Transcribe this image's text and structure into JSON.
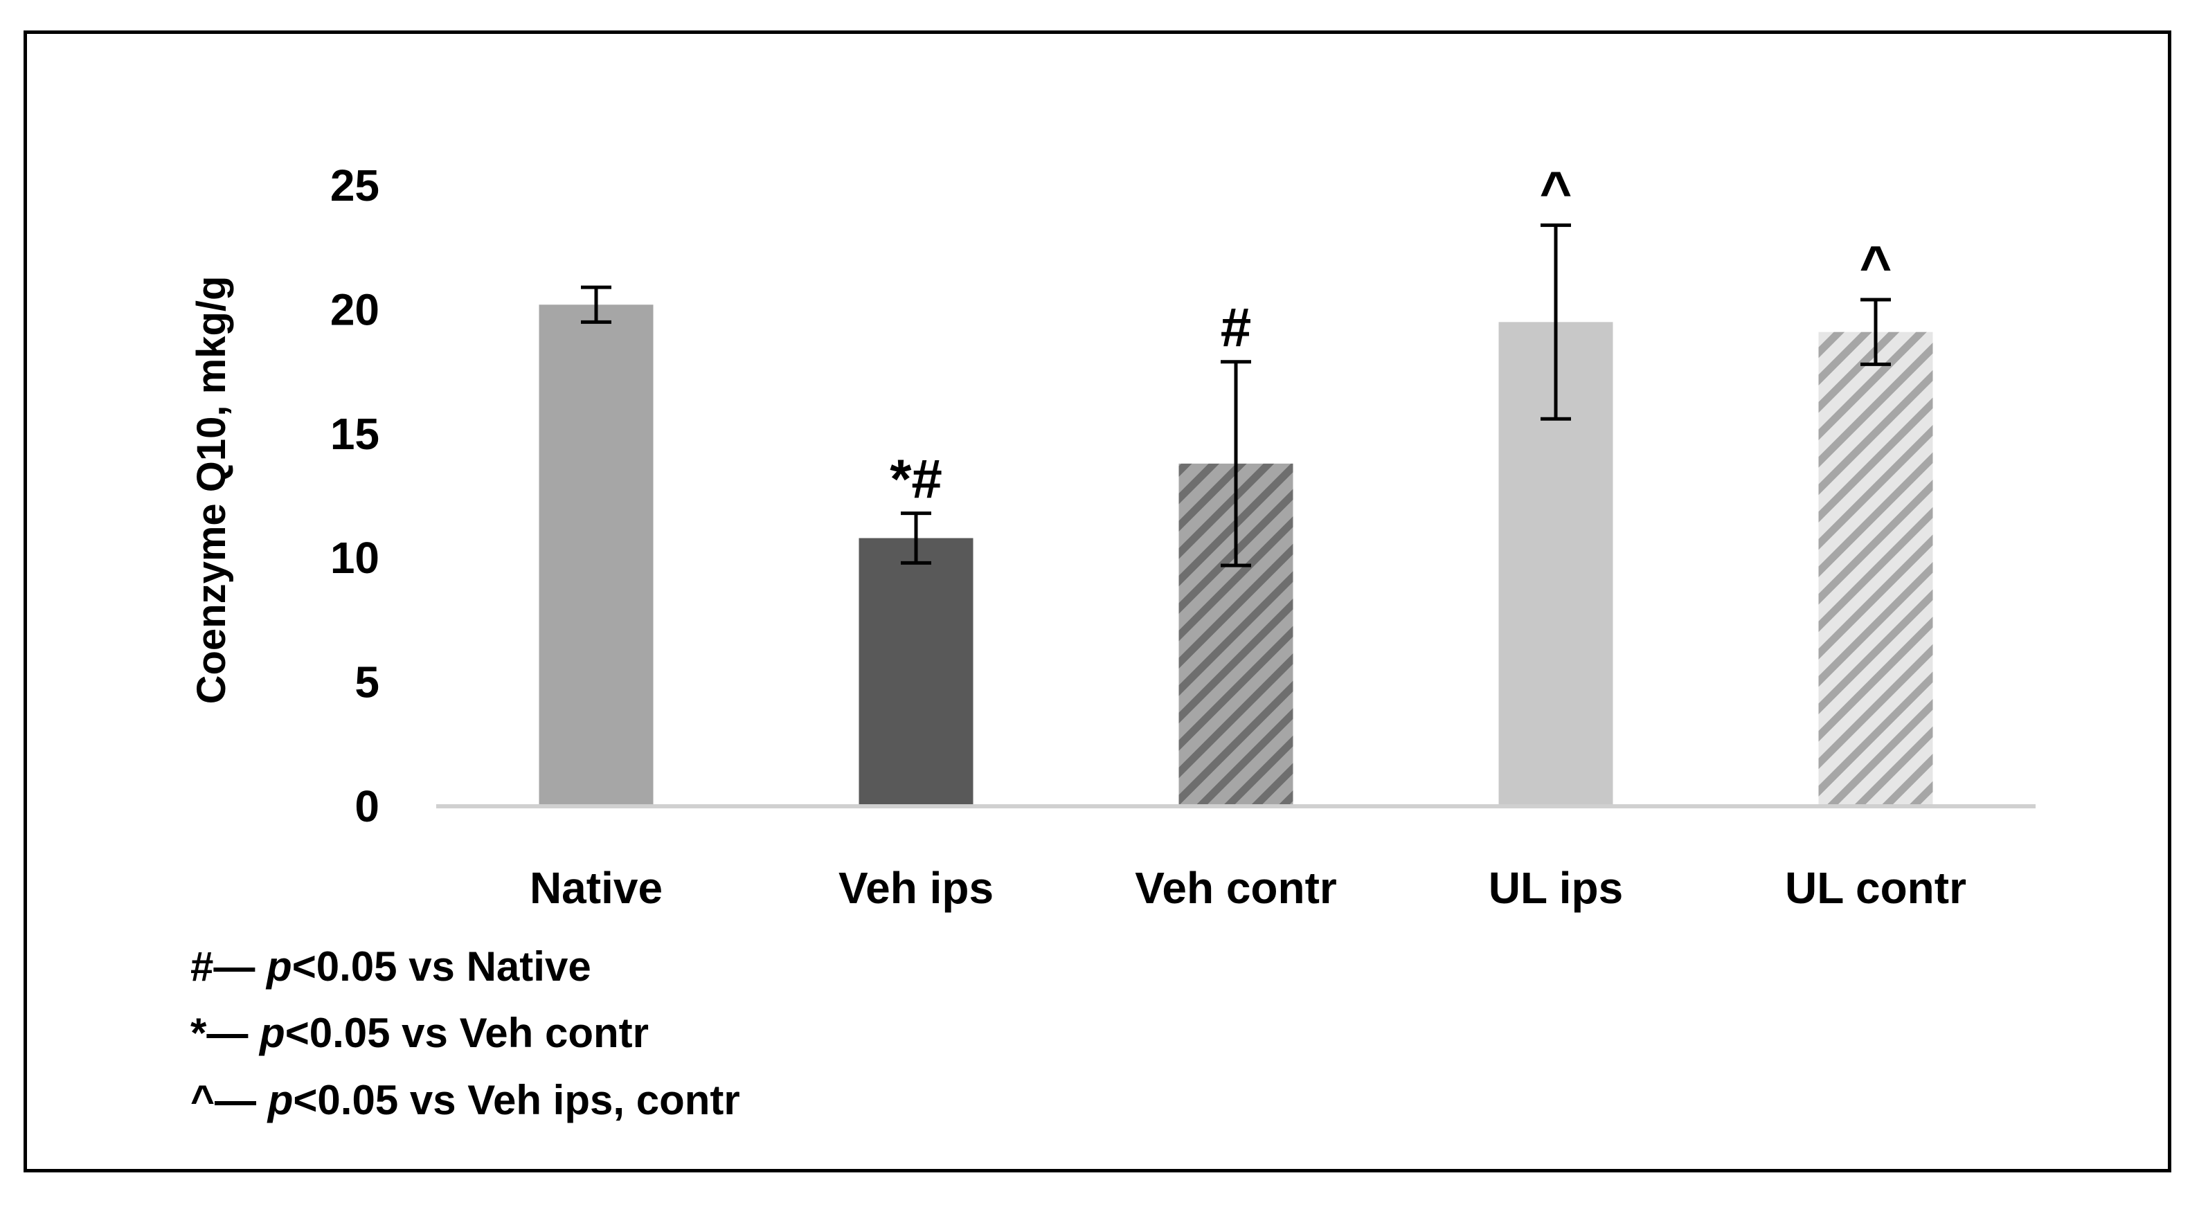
{
  "chart_data": {
    "type": "bar",
    "title": "",
    "xlabel": "",
    "ylabel": "Coenzyme Q10, mkg/g",
    "ylim": [
      0,
      25
    ],
    "yticks": [
      0,
      5,
      10,
      15,
      20,
      25
    ],
    "grid": false,
    "categories": [
      "Native",
      "Veh ips",
      "Veh contr",
      "UL ips",
      "UL contr"
    ],
    "values": [
      20.2,
      10.8,
      13.8,
      19.5,
      19.1
    ],
    "errors": [
      0.7,
      1.0,
      4.1,
      3.9,
      1.3
    ],
    "annotations": [
      "",
      "*#",
      "#",
      "^",
      "^"
    ],
    "bar_styles": [
      {
        "fill": "#a6a6a6",
        "pattern": "solid"
      },
      {
        "fill": "#595959",
        "pattern": "solid"
      },
      {
        "fill": "#8c8c8c",
        "pattern": "hatch"
      },
      {
        "fill": "#c8c8c8",
        "pattern": "solid"
      },
      {
        "fill": "#c8c8c8",
        "pattern": "hatch"
      }
    ]
  },
  "legend_notes": [
    {
      "symbol": "#",
      "p_text": "p",
      "rest": "<0.05 vs Native"
    },
    {
      "symbol": "*",
      "p_text": "p",
      "rest": "<0.05 vs Veh contr"
    },
    {
      "symbol": "^",
      "p_text": "p",
      "rest": "<0.05 vs Veh ips, contr"
    }
  ],
  "dash": "—"
}
